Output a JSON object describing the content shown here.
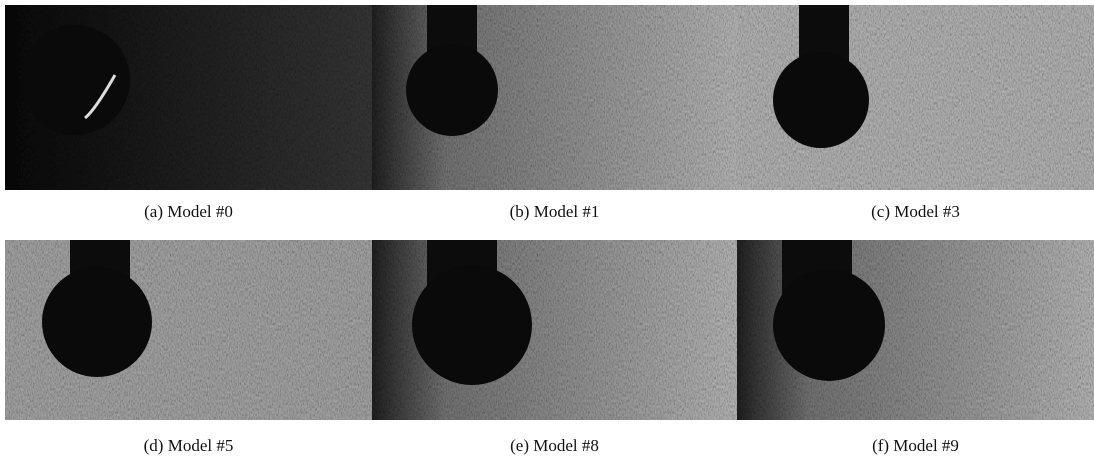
{
  "figure": {
    "panels": [
      {
        "caption": "(a) Model #0"
      },
      {
        "caption": "(b) Model #1"
      },
      {
        "caption": "(c) Model #3"
      },
      {
        "caption": "(d) Model #5"
      },
      {
        "caption": "(e) Model #8"
      },
      {
        "caption": "(f) Model #9"
      }
    ]
  }
}
